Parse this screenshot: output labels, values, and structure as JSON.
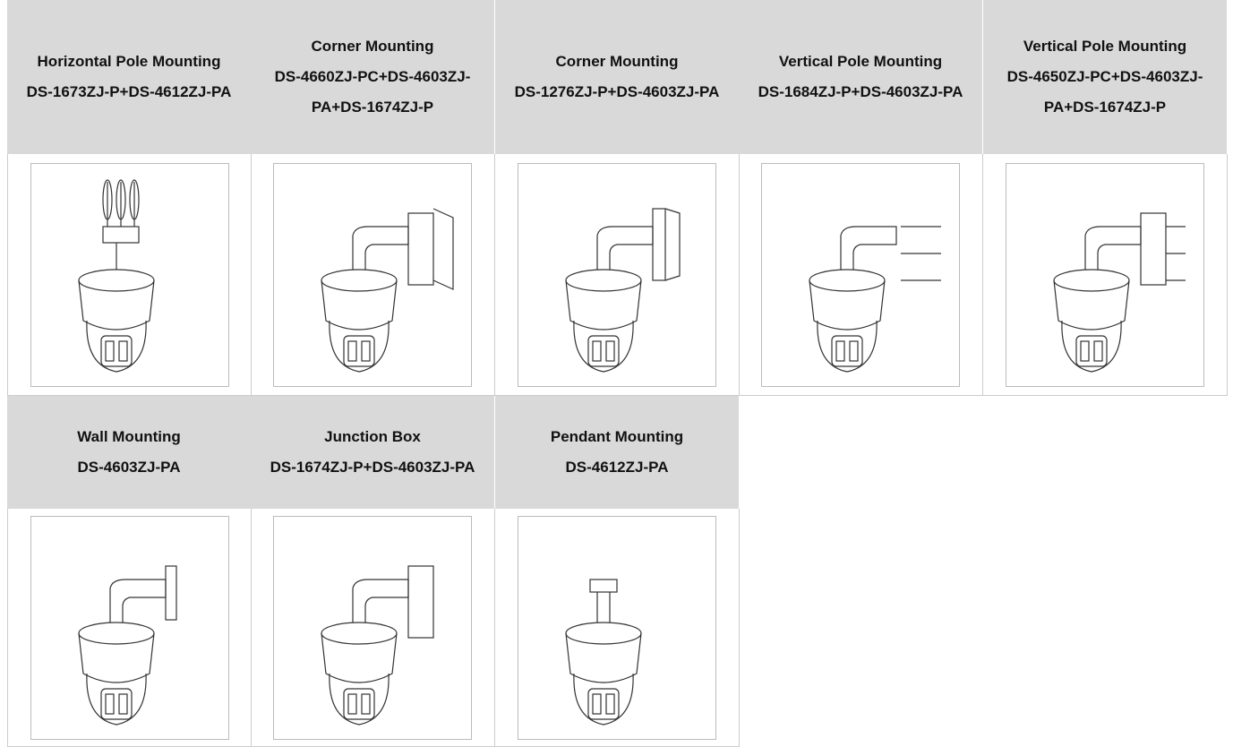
{
  "mounts": [
    {
      "name": "Horizontal Pole Mounting",
      "model": "DS-1673ZJ-P+DS-4612ZJ-PA"
    },
    {
      "name": "Corner Mounting",
      "model": "DS-4660ZJ-PC+DS-4603ZJ-PA+DS-1674ZJ-P"
    },
    {
      "name": "Corner Mounting",
      "model": "DS-1276ZJ-P+DS-4603ZJ-PA"
    },
    {
      "name": "Vertical Pole Mounting",
      "model": "DS-1684ZJ-P+DS-4603ZJ-PA"
    },
    {
      "name": "Vertical Pole Mounting",
      "model": "DS-4650ZJ-PC+DS-4603ZJ-PA+DS-1674ZJ-P"
    },
    {
      "name": "Wall Mounting",
      "model": "DS-4603ZJ-PA"
    },
    {
      "name": "Junction Box",
      "model": "DS-1674ZJ-P+DS-4603ZJ-PA"
    },
    {
      "name": "Pendant Mounting",
      "model": "DS-4612ZJ-PA"
    }
  ]
}
